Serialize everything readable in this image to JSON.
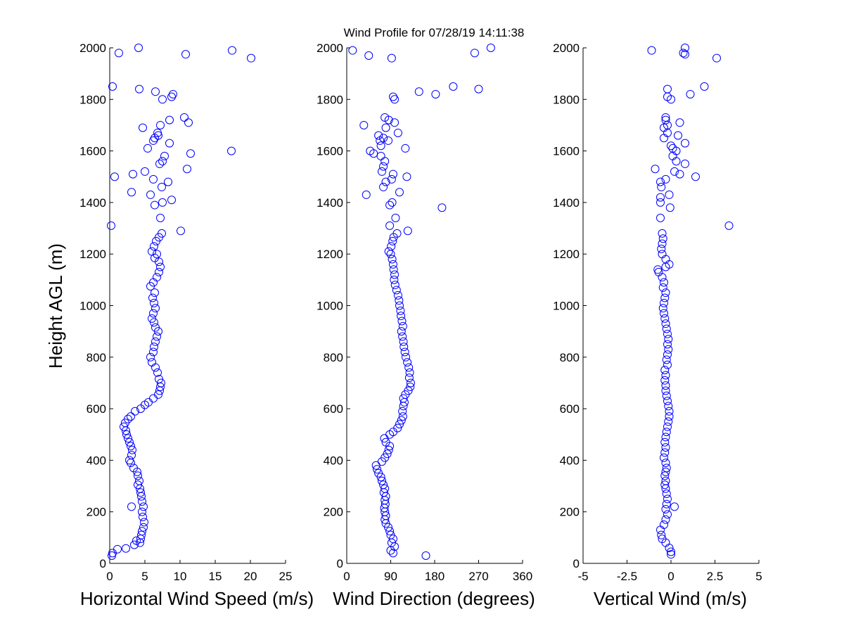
{
  "title": "Wind Profile for  07/28/19 14:11:38",
  "colors": {
    "marker": "#0000ff",
    "axis": "#000000",
    "background": "#ffffff"
  },
  "chart_data": [
    {
      "type": "scatter",
      "xlabel": "Horizontal Wind Speed (m/s)",
      "ylabel": "Height AGL (m)",
      "xlim": [
        0,
        25
      ],
      "ylim": [
        0,
        2000
      ],
      "xticks": [
        "0",
        "5",
        "10",
        "15",
        "20",
        "25"
      ],
      "yticks": [
        "0",
        "200",
        "400",
        "600",
        "800",
        "1000",
        "1200",
        "1400",
        "1600",
        "1800",
        "2000"
      ],
      "marker": "circle-open",
      "grid": false,
      "points": [
        [
          0.3,
          30
        ],
        [
          0.4,
          40
        ],
        [
          1.1,
          55
        ],
        [
          2.3,
          58
        ],
        [
          3.5,
          72
        ],
        [
          3.8,
          88
        ],
        [
          4.3,
          80
        ],
        [
          4.4,
          95
        ],
        [
          4.5,
          110
        ],
        [
          4.6,
          125
        ],
        [
          4.8,
          140
        ],
        [
          4.9,
          160
        ],
        [
          4.7,
          180
        ],
        [
          4.6,
          200
        ],
        [
          4.8,
          220
        ],
        [
          3.1,
          220
        ],
        [
          4.6,
          240
        ],
        [
          4.5,
          260
        ],
        [
          4.4,
          275
        ],
        [
          4.3,
          290
        ],
        [
          4.0,
          305
        ],
        [
          4.2,
          320
        ],
        [
          4.0,
          340
        ],
        [
          3.9,
          355
        ],
        [
          3.4,
          370
        ],
        [
          3.0,
          390
        ],
        [
          2.8,
          400
        ],
        [
          3.1,
          420
        ],
        [
          3.2,
          440
        ],
        [
          3.0,
          455
        ],
        [
          2.8,
          470
        ],
        [
          2.6,
          485
        ],
        [
          2.4,
          500
        ],
        [
          2.3,
          515
        ],
        [
          2.0,
          530
        ],
        [
          2.2,
          545
        ],
        [
          2.6,
          560
        ],
        [
          3.0,
          570
        ],
        [
          3.6,
          590
        ],
        [
          4.4,
          600
        ],
        [
          5.0,
          615
        ],
        [
          5.5,
          625
        ],
        [
          6.2,
          640
        ],
        [
          6.9,
          655
        ],
        [
          7.1,
          670
        ],
        [
          7.2,
          685
        ],
        [
          7.3,
          700
        ],
        [
          7.0,
          715
        ],
        [
          6.8,
          740
        ],
        [
          6.5,
          760
        ],
        [
          6.0,
          780
        ],
        [
          5.8,
          800
        ],
        [
          6.2,
          820
        ],
        [
          6.3,
          840
        ],
        [
          6.5,
          860
        ],
        [
          6.7,
          880
        ],
        [
          6.9,
          900
        ],
        [
          6.5,
          915
        ],
        [
          6.3,
          935
        ],
        [
          6.0,
          950
        ],
        [
          6.2,
          970
        ],
        [
          6.5,
          990
        ],
        [
          6.3,
          1010
        ],
        [
          6.1,
          1030
        ],
        [
          6.4,
          1050
        ],
        [
          5.8,
          1075
        ],
        [
          6.2,
          1090
        ],
        [
          6.7,
          1110
        ],
        [
          7.0,
          1130
        ],
        [
          7.2,
          1150
        ],
        [
          7.0,
          1170
        ],
        [
          6.4,
          1185
        ],
        [
          6.7,
          1200
        ],
        [
          6.0,
          1210
        ],
        [
          6.3,
          1230
        ],
        [
          6.6,
          1250
        ],
        [
          7.0,
          1265
        ],
        [
          7.4,
          1280
        ],
        [
          0.2,
          1310
        ],
        [
          10.1,
          1290
        ],
        [
          7.2,
          1340
        ],
        [
          6.4,
          1390
        ],
        [
          7.5,
          1400
        ],
        [
          8.8,
          1410
        ],
        [
          3.1,
          1440
        ],
        [
          5.8,
          1430
        ],
        [
          7.4,
          1460
        ],
        [
          8.3,
          1480
        ],
        [
          0.7,
          1500
        ],
        [
          6.2,
          1490
        ],
        [
          3.3,
          1510
        ],
        [
          5.0,
          1520
        ],
        [
          11.0,
          1530
        ],
        [
          7.1,
          1550
        ],
        [
          7.5,
          1560
        ],
        [
          7.8,
          1580
        ],
        [
          11.5,
          1590
        ],
        [
          17.3,
          1600
        ],
        [
          5.4,
          1610
        ],
        [
          8.5,
          1630
        ],
        [
          6.4,
          1650
        ],
        [
          6.2,
          1640
        ],
        [
          6.9,
          1660
        ],
        [
          6.8,
          1670
        ],
        [
          7.2,
          1700
        ],
        [
          4.7,
          1690
        ],
        [
          11.2,
          1710
        ],
        [
          8.5,
          1720
        ],
        [
          10.6,
          1730
        ],
        [
          7.5,
          1800
        ],
        [
          6.5,
          1830
        ],
        [
          8.8,
          1810
        ],
        [
          9.0,
          1820
        ],
        [
          0.4,
          1850
        ],
        [
          4.2,
          1840
        ],
        [
          1.3,
          1980
        ],
        [
          4.1,
          2000
        ],
        [
          10.8,
          1975
        ],
        [
          17.4,
          1990
        ],
        [
          20.1,
          1960
        ]
      ]
    },
    {
      "type": "scatter",
      "xlabel": "Wind Direction (degrees)",
      "ylabel": "",
      "xlim": [
        0,
        360
      ],
      "ylim": [
        0,
        2000
      ],
      "xticks": [
        "0",
        "90",
        "180",
        "270",
        "360"
      ],
      "yticks": [
        "0",
        "200",
        "400",
        "600",
        "800",
        "1000",
        "1200",
        "1400",
        "1600",
        "1800",
        "2000"
      ],
      "marker": "circle-open",
      "grid": false,
      "points": [
        [
          95,
          40
        ],
        [
          90,
          50
        ],
        [
          98,
          65
        ],
        [
          162,
          30
        ],
        [
          92,
          80
        ],
        [
          95,
          95
        ],
        [
          90,
          110
        ],
        [
          88,
          125
        ],
        [
          85,
          140
        ],
        [
          80,
          155
        ],
        [
          78,
          170
        ],
        [
          80,
          185
        ],
        [
          78,
          200
        ],
        [
          77,
          215
        ],
        [
          79,
          230
        ],
        [
          78,
          245
        ],
        [
          80,
          260
        ],
        [
          76,
          275
        ],
        [
          78,
          290
        ],
        [
          75,
          305
        ],
        [
          72,
          320
        ],
        [
          70,
          335
        ],
        [
          65,
          350
        ],
        [
          62,
          365
        ],
        [
          60,
          380
        ],
        [
          72,
          395
        ],
        [
          78,
          410
        ],
        [
          83,
          425
        ],
        [
          86,
          440
        ],
        [
          88,
          455
        ],
        [
          80,
          470
        ],
        [
          77,
          485
        ],
        [
          88,
          500
        ],
        [
          95,
          510
        ],
        [
          104,
          525
        ],
        [
          108,
          540
        ],
        [
          112,
          555
        ],
        [
          115,
          570
        ],
        [
          114,
          590
        ],
        [
          116,
          610
        ],
        [
          118,
          625
        ],
        [
          116,
          640
        ],
        [
          120,
          655
        ],
        [
          126,
          670
        ],
        [
          130,
          685
        ],
        [
          131,
          700
        ],
        [
          128,
          720
        ],
        [
          129,
          740
        ],
        [
          127,
          760
        ],
        [
          124,
          780
        ],
        [
          121,
          800
        ],
        [
          119,
          820
        ],
        [
          117,
          840
        ],
        [
          116,
          860
        ],
        [
          114,
          880
        ],
        [
          112,
          900
        ],
        [
          115,
          920
        ],
        [
          113,
          940
        ],
        [
          111,
          960
        ],
        [
          110,
          980
        ],
        [
          108,
          1000
        ],
        [
          107,
          1020
        ],
        [
          105,
          1040
        ],
        [
          102,
          1060
        ],
        [
          99,
          1080
        ],
        [
          97,
          1100
        ],
        [
          98,
          1120
        ],
        [
          96,
          1140
        ],
        [
          95,
          1160
        ],
        [
          93,
          1180
        ],
        [
          90,
          1200
        ],
        [
          86,
          1210
        ],
        [
          91,
          1230
        ],
        [
          94,
          1250
        ],
        [
          96,
          1265
        ],
        [
          103,
          1280
        ],
        [
          125,
          1290
        ],
        [
          88,
          1310
        ],
        [
          100,
          1340
        ],
        [
          88,
          1390
        ],
        [
          93,
          1400
        ],
        [
          195,
          1380
        ],
        [
          40,
          1430
        ],
        [
          108,
          1440
        ],
        [
          75,
          1460
        ],
        [
          80,
          1480
        ],
        [
          92,
          1490
        ],
        [
          95,
          1510
        ],
        [
          123,
          1500
        ],
        [
          72,
          1520
        ],
        [
          75,
          1540
        ],
        [
          78,
          1560
        ],
        [
          70,
          1580
        ],
        [
          48,
          1600
        ],
        [
          55,
          1590
        ],
        [
          70,
          1620
        ],
        [
          120,
          1610
        ],
        [
          68,
          1640
        ],
        [
          75,
          1650
        ],
        [
          65,
          1660
        ],
        [
          85,
          1640
        ],
        [
          80,
          1690
        ],
        [
          105,
          1670
        ],
        [
          35,
          1700
        ],
        [
          98,
          1710
        ],
        [
          78,
          1730
        ],
        [
          86,
          1720
        ],
        [
          95,
          1810
        ],
        [
          98,
          1800
        ],
        [
          148,
          1830
        ],
        [
          182,
          1820
        ],
        [
          218,
          1850
        ],
        [
          270,
          1840
        ],
        [
          12,
          1990
        ],
        [
          45,
          1970
        ],
        [
          92,
          1960
        ],
        [
          262,
          1980
        ],
        [
          295,
          2000
        ]
      ]
    },
    {
      "type": "scatter",
      "xlabel": "Vertical Wind (m/s)",
      "ylabel": "",
      "xlim": [
        -5,
        5
      ],
      "xticks": [
        "-5",
        "-2.5",
        "0",
        "2.5",
        "5"
      ],
      "ylim": [
        0,
        2000
      ],
      "yticks": [
        "0",
        "200",
        "400",
        "600",
        "800",
        "1000",
        "1200",
        "1400",
        "1600",
        "1800",
        "2000"
      ],
      "marker": "circle-open",
      "grid": false,
      "points": [
        [
          0.0,
          35
        ],
        [
          0.0,
          45
        ],
        [
          -0.1,
          60
        ],
        [
          -0.3,
          80
        ],
        [
          -0.5,
          95
        ],
        [
          -0.55,
          110
        ],
        [
          -0.6,
          130
        ],
        [
          -0.4,
          150
        ],
        [
          -0.3,
          170
        ],
        [
          -0.2,
          190
        ],
        [
          -0.3,
          210
        ],
        [
          0.2,
          220
        ],
        [
          -0.25,
          230
        ],
        [
          -0.2,
          250
        ],
        [
          -0.25,
          270
        ],
        [
          -0.3,
          290
        ],
        [
          -0.35,
          305
        ],
        [
          -0.3,
          320
        ],
        [
          -0.35,
          340
        ],
        [
          -0.3,
          355
        ],
        [
          -0.25,
          370
        ],
        [
          -0.3,
          390
        ],
        [
          -0.4,
          410
        ],
        [
          -0.35,
          430
        ],
        [
          -0.3,
          450
        ],
        [
          -0.35,
          470
        ],
        [
          -0.3,
          490
        ],
        [
          -0.25,
          510
        ],
        [
          -0.2,
          530
        ],
        [
          -0.15,
          550
        ],
        [
          -0.1,
          570
        ],
        [
          -0.1,
          590
        ],
        [
          -0.15,
          610
        ],
        [
          -0.2,
          630
        ],
        [
          -0.25,
          650
        ],
        [
          -0.3,
          670
        ],
        [
          -0.3,
          690
        ],
        [
          -0.35,
          710
        ],
        [
          -0.3,
          730
        ],
        [
          -0.35,
          750
        ],
        [
          -0.2,
          770
        ],
        [
          -0.25,
          790
        ],
        [
          -0.2,
          810
        ],
        [
          -0.15,
          830
        ],
        [
          -0.2,
          850
        ],
        [
          -0.15,
          870
        ],
        [
          -0.2,
          890
        ],
        [
          -0.25,
          910
        ],
        [
          -0.3,
          930
        ],
        [
          -0.35,
          950
        ],
        [
          -0.4,
          970
        ],
        [
          -0.45,
          990
        ],
        [
          -0.4,
          1010
        ],
        [
          -0.35,
          1030
        ],
        [
          -0.3,
          1050
        ],
        [
          -0.45,
          1070
        ],
        [
          -0.4,
          1090
        ],
        [
          -0.5,
          1110
        ],
        [
          -0.7,
          1130
        ],
        [
          -0.75,
          1140
        ],
        [
          -0.3,
          1150
        ],
        [
          -0.1,
          1160
        ],
        [
          -0.3,
          1180
        ],
        [
          -0.5,
          1200
        ],
        [
          -0.55,
          1220
        ],
        [
          -0.5,
          1240
        ],
        [
          -0.45,
          1260
        ],
        [
          -0.5,
          1280
        ],
        [
          3.3,
          1310
        ],
        [
          -0.6,
          1340
        ],
        [
          -0.05,
          1380
        ],
        [
          -0.6,
          1400
        ],
        [
          -0.6,
          1420
        ],
        [
          -0.1,
          1430
        ],
        [
          -0.55,
          1460
        ],
        [
          -0.6,
          1480
        ],
        [
          -0.3,
          1490
        ],
        [
          1.4,
          1500
        ],
        [
          0.5,
          1510
        ],
        [
          -0.9,
          1530
        ],
        [
          0.2,
          1520
        ],
        [
          0.8,
          1550
        ],
        [
          0.3,
          1560
        ],
        [
          0.1,
          1580
        ],
        [
          0.3,
          1600
        ],
        [
          0.1,
          1610
        ],
        [
          0.0,
          1620
        ],
        [
          0.8,
          1630
        ],
        [
          -0.4,
          1650
        ],
        [
          0.4,
          1660
        ],
        [
          -0.2,
          1670
        ],
        [
          -0.4,
          1690
        ],
        [
          -0.2,
          1700
        ],
        [
          0.5,
          1710
        ],
        [
          -0.3,
          1720
        ],
        [
          -0.3,
          1730
        ],
        [
          0.0,
          1800
        ],
        [
          -0.2,
          1810
        ],
        [
          -0.2,
          1840
        ],
        [
          1.1,
          1820
        ],
        [
          1.9,
          1850
        ],
        [
          -1.1,
          1990
        ],
        [
          0.8,
          2000
        ],
        [
          0.7,
          1980
        ],
        [
          0.8,
          1975
        ],
        [
          2.6,
          1960
        ]
      ]
    }
  ]
}
